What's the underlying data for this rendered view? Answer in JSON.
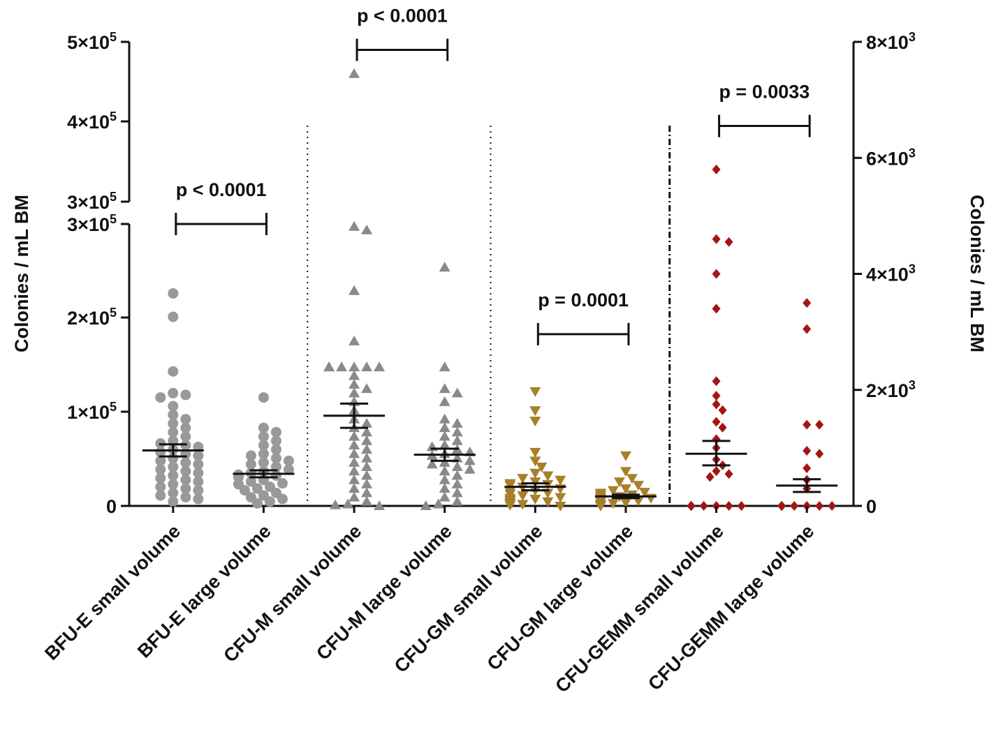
{
  "chart_data": {
    "type": "scatter",
    "ylabel_left": "Colonies / mL BM",
    "ylabel_right": "Colonies / mL BM",
    "left_axis": {
      "ticks": [
        {
          "value": 0,
          "label": "0"
        },
        {
          "value": 100000,
          "label": "1×10",
          "sup": "5"
        },
        {
          "value": 200000,
          "label": "2×10",
          "sup": "5"
        },
        {
          "value": 300000,
          "label": "3×10",
          "sup": "5"
        },
        {
          "value": 325000,
          "label": "3×10",
          "sup": "5"
        },
        {
          "value": 400000,
          "label": "4×10",
          "sup": "5"
        },
        {
          "value": 500000,
          "label": "5×10",
          "sup": "5"
        }
      ],
      "break": [
        300000,
        325000
      ]
    },
    "right_axis": {
      "ylim": [
        0,
        8000
      ],
      "ticks": [
        {
          "value": 0,
          "label": "0"
        },
        {
          "value": 2000,
          "label": "2×10",
          "sup": "3"
        },
        {
          "value": 4000,
          "label": "4×10",
          "sup": "3"
        },
        {
          "value": 6000,
          "label": "6×10",
          "sup": "3"
        },
        {
          "value": 8000,
          "label": "8×10",
          "sup": "3"
        }
      ]
    },
    "series": [
      {
        "name": "BFU-E small volume",
        "axis": "left",
        "marker": "circle",
        "color": "#999999",
        "values": [
          245000,
          218000,
          155000,
          130000,
          128000,
          125000,
          115000,
          105000,
          100000,
          95000,
          90000,
          85000,
          80000,
          75000,
          72000,
          70000,
          68000,
          65000,
          62000,
          60000,
          58000,
          55000,
          52000,
          50000,
          48000,
          45000,
          42000,
          40000,
          38000,
          35000,
          32000,
          30000,
          28000,
          25000,
          22000,
          20000,
          18000,
          15000,
          12000,
          10000,
          8000,
          5000
        ],
        "mean": 64000,
        "sem_low": 57000,
        "sem_high": 71000
      },
      {
        "name": "BFU-E large volume",
        "axis": "left",
        "marker": "circle",
        "color": "#999999",
        "values": [
          125000,
          90000,
          85000,
          80000,
          75000,
          70000,
          65000,
          60000,
          58000,
          55000,
          52000,
          50000,
          48000,
          45000,
          42000,
          40000,
          38000,
          36000,
          35000,
          33000,
          30000,
          28000,
          26000,
          25000,
          22000,
          20000,
          18000,
          15000,
          12000,
          10000,
          8000,
          5000,
          3000
        ],
        "mean": 37000,
        "sem_low": 33000,
        "sem_high": 41000
      },
      {
        "name": "CFU-M small volume",
        "axis": "left",
        "marker": "triangle-up",
        "color": "#8a8a8a",
        "values": [
          460000,
          322000,
          318000,
          248000,
          190000,
          160000,
          160000,
          160000,
          160000,
          160000,
          160000,
          150000,
          140000,
          135000,
          130000,
          120000,
          110000,
          100000,
          95000,
          90000,
          85000,
          80000,
          75000,
          70000,
          65000,
          60000,
          55000,
          50000,
          45000,
          40000,
          35000,
          30000,
          25000,
          20000,
          15000,
          10000,
          5000,
          2000,
          1000,
          0
        ],
        "mean": 104000,
        "sem_low": 90000,
        "sem_high": 118000
      },
      {
        "name": "CFU-M large volume",
        "axis": "left",
        "marker": "triangle-up",
        "color": "#8a8a8a",
        "values": [
          275000,
          160000,
          135000,
          130000,
          120000,
          100000,
          95000,
          90000,
          85000,
          80000,
          75000,
          70000,
          68000,
          65000,
          62000,
          60000,
          58000,
          55000,
          52000,
          50000,
          48000,
          45000,
          42000,
          40000,
          35000,
          30000,
          25000,
          20000,
          15000,
          10000,
          5000,
          2000,
          0
        ],
        "mean": 59000,
        "sem_low": 52000,
        "sem_high": 66000
      },
      {
        "name": "CFU-GM small volume",
        "axis": "left",
        "marker": "triangle-down",
        "color": "#a97f2b",
        "values": [
          132000,
          110000,
          98000,
          62000,
          52000,
          45000,
          38000,
          35000,
          32000,
          30000,
          28000,
          26000,
          25000,
          24000,
          22000,
          20000,
          18000,
          17000,
          15000,
          14000,
          12000,
          10000,
          9000,
          8000,
          7000,
          6000,
          5000,
          4000,
          3000,
          2000,
          1000,
          0
        ],
        "mean": 22000,
        "sem_low": 18000,
        "sem_high": 26000
      },
      {
        "name": "CFU-GM large volume",
        "axis": "left",
        "marker": "triangle-down",
        "color": "#a97f2b",
        "values": [
          58000,
          40000,
          32000,
          28000,
          24000,
          20000,
          18000,
          16000,
          15000,
          14000,
          13000,
          12000,
          11000,
          10000,
          9000,
          8000,
          7000,
          6000,
          5000,
          4000,
          3000,
          2000,
          1000,
          0
        ],
        "mean": 11000,
        "sem_low": 9000,
        "sem_high": 13000
      },
      {
        "name": "CFU-GEMM small volume",
        "axis": "right",
        "marker": "diamond",
        "color": "#a31515",
        "values": [
          5800,
          4600,
          4550,
          4000,
          3400,
          2150,
          1900,
          1750,
          1650,
          1450,
          1350,
          1150,
          1000,
          800,
          700,
          600,
          550,
          500,
          0,
          0,
          0,
          0,
          0,
          0,
          0,
          0,
          0,
          0,
          0,
          0
        ],
        "mean": 900,
        "sem_low": 700,
        "sem_high": 1120
      },
      {
        "name": "CFU-GEMM large volume",
        "axis": "right",
        "marker": "diamond",
        "color": "#a31515",
        "values": [
          3500,
          3050,
          1400,
          1400,
          950,
          900,
          650,
          450,
          300,
          0,
          0,
          0,
          0,
          0,
          0,
          0,
          0,
          0,
          0,
          0,
          0
        ],
        "mean": 350,
        "sem_low": 240,
        "sem_high": 460
      }
    ],
    "comparisons": [
      {
        "from": 0,
        "to": 1,
        "label": "p < 0.0001",
        "axis": "left",
        "value": 325000
      },
      {
        "from": 2,
        "to": 3,
        "label": "p < 0.0001",
        "axis": "left",
        "value": 490000
      },
      {
        "from": 4,
        "to": 5,
        "label": "p = 0.0001",
        "axis": "left",
        "value": 198000
      },
      {
        "from": 6,
        "to": 7,
        "label": "p = 0.0033",
        "axis": "right",
        "value": 6550
      }
    ],
    "dividers_after": [
      1,
      3,
      5
    ]
  }
}
